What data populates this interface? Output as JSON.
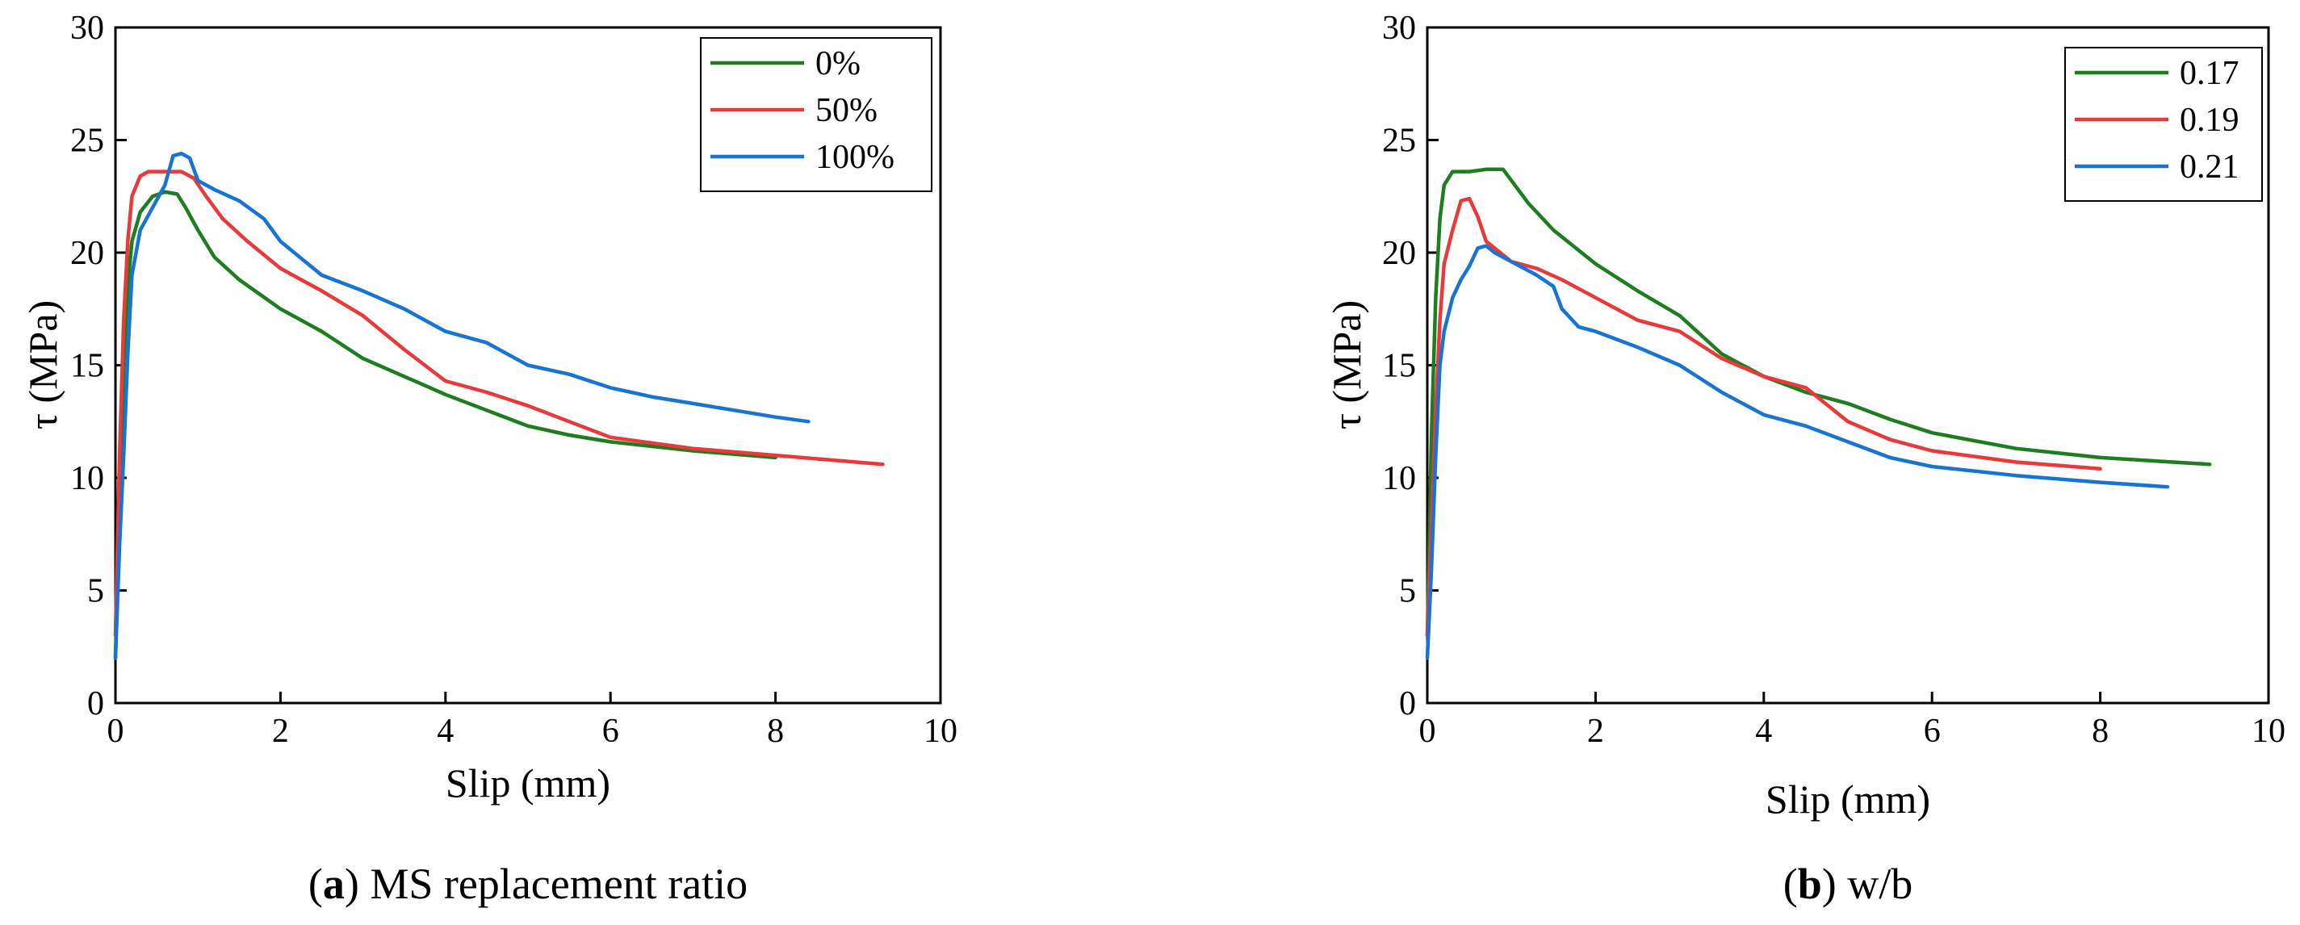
{
  "chart_data": [
    {
      "type": "line",
      "panel_label": "a",
      "caption": "MS replacement ratio",
      "xlabel": "Slip (mm)",
      "ylabel": "τ (MPa)",
      "xlim": [
        0,
        10
      ],
      "ylim": [
        0,
        30
      ],
      "xticks": [
        0,
        2,
        4,
        6,
        8,
        10
      ],
      "yticks": [
        0,
        5,
        10,
        15,
        20,
        25,
        30
      ],
      "xtick_labels": [
        "0",
        "2",
        "4",
        "6",
        "8",
        "10"
      ],
      "ytick_labels": [
        "0",
        "5",
        "10",
        "15",
        "20",
        "25",
        "30"
      ],
      "legend_position": "top-right",
      "series": [
        {
          "name": "0%",
          "color": "#1e7d1e",
          "x": [
            0,
            0.05,
            0.1,
            0.15,
            0.2,
            0.3,
            0.45,
            0.6,
            0.75,
            0.85,
            1.0,
            1.2,
            1.5,
            2.0,
            2.5,
            3.0,
            3.5,
            4.0,
            4.5,
            5.0,
            5.5,
            6.0,
            7.0,
            8.0
          ],
          "y": [
            2,
            9,
            15,
            18.5,
            20.5,
            21.8,
            22.5,
            22.7,
            22.6,
            22,
            21,
            19.8,
            18.8,
            17.5,
            16.5,
            15.3,
            14.5,
            13.7,
            13.0,
            12.3,
            11.9,
            11.6,
            11.2,
            10.9
          ]
        },
        {
          "name": "50%",
          "color": "#e83a3a",
          "x": [
            0,
            0.05,
            0.1,
            0.15,
            0.2,
            0.3,
            0.4,
            0.6,
            0.8,
            0.95,
            1.1,
            1.3,
            1.6,
            2.0,
            2.5,
            3.0,
            3.5,
            4.0,
            4.5,
            5.0,
            5.5,
            6.0,
            7.0,
            8.0,
            9.3
          ],
          "y": [
            3,
            11,
            17,
            20.5,
            22.5,
            23.4,
            23.6,
            23.6,
            23.6,
            23.3,
            22.5,
            21.5,
            20.5,
            19.3,
            18.3,
            17.2,
            15.7,
            14.3,
            13.8,
            13.2,
            12.5,
            11.8,
            11.3,
            11.0,
            10.6
          ]
        },
        {
          "name": "100%",
          "color": "#1874d2",
          "x": [
            0,
            0.05,
            0.1,
            0.15,
            0.2,
            0.3,
            0.45,
            0.6,
            0.7,
            0.8,
            0.9,
            1.0,
            1.2,
            1.5,
            1.8,
            2.0,
            2.5,
            3.0,
            3.5,
            4.0,
            4.5,
            5.0,
            5.5,
            6.0,
            6.5,
            7.0,
            7.5,
            8.0,
            8.4
          ],
          "y": [
            2,
            7,
            11,
            15.5,
            19,
            21,
            22,
            23,
            24.3,
            24.4,
            24.2,
            23.2,
            22.8,
            22.3,
            21.5,
            20.5,
            19,
            18.3,
            17.5,
            16.5,
            16,
            15,
            14.6,
            14,
            13.6,
            13.3,
            13.0,
            12.7,
            12.5
          ]
        }
      ]
    },
    {
      "type": "line",
      "panel_label": "b",
      "caption": "w/b",
      "xlabel": "Slip (mm)",
      "ylabel": "τ (MPa)",
      "xlim": [
        0,
        10
      ],
      "ylim": [
        0,
        30
      ],
      "xticks": [
        0,
        2,
        4,
        6,
        8,
        10
      ],
      "yticks": [
        0,
        5,
        10,
        15,
        20,
        25,
        30
      ],
      "xtick_labels": [
        "0",
        "2",
        "4",
        "6",
        "8",
        "10"
      ],
      "ytick_labels": [
        "0",
        "5",
        "10",
        "15",
        "20",
        "25",
        "30"
      ],
      "legend_position": "top-right",
      "series": [
        {
          "name": "0.17",
          "color": "#1e7d1e",
          "x": [
            0,
            0.05,
            0.1,
            0.15,
            0.2,
            0.3,
            0.5,
            0.7,
            0.9,
            1.0,
            1.2,
            1.5,
            2.0,
            2.5,
            3.0,
            3.5,
            4.0,
            4.5,
            5.0,
            5.5,
            6.0,
            7.0,
            8.0,
            9.3
          ],
          "y": [
            3,
            12,
            18,
            21.5,
            23,
            23.6,
            23.6,
            23.7,
            23.7,
            23.2,
            22.2,
            21,
            19.5,
            18.3,
            17.2,
            15.5,
            14.5,
            13.8,
            13.3,
            12.6,
            12,
            11.3,
            10.9,
            10.6
          ]
        },
        {
          "name": "0.19",
          "color": "#e83a3a",
          "x": [
            0,
            0.05,
            0.1,
            0.15,
            0.2,
            0.3,
            0.4,
            0.5,
            0.6,
            0.7,
            0.8,
            1.0,
            1.3,
            1.6,
            2.0,
            2.5,
            3.0,
            3.5,
            4.0,
            4.5,
            5.0,
            5.5,
            6.0,
            7.0,
            8.0
          ],
          "y": [
            3,
            8,
            13,
            17,
            19.5,
            21,
            22.3,
            22.4,
            21.6,
            20.5,
            20.2,
            19.6,
            19.3,
            18.8,
            18,
            17,
            16.5,
            15.3,
            14.5,
            14,
            12.5,
            11.7,
            11.2,
            10.7,
            10.4
          ]
        },
        {
          "name": "0.21",
          "color": "#1874d2",
          "x": [
            0,
            0.05,
            0.1,
            0.15,
            0.2,
            0.3,
            0.4,
            0.5,
            0.6,
            0.7,
            0.8,
            1.0,
            1.3,
            1.5,
            1.6,
            1.8,
            2.0,
            2.5,
            3.0,
            3.5,
            4.0,
            4.5,
            5.0,
            5.5,
            6.0,
            7.0,
            8.0,
            8.8
          ],
          "y": [
            2,
            6,
            11,
            15,
            16.5,
            18,
            18.8,
            19.4,
            20.2,
            20.3,
            20,
            19.6,
            19,
            18.5,
            17.5,
            16.7,
            16.5,
            15.8,
            15,
            13.8,
            12.8,
            12.3,
            11.6,
            10.9,
            10.5,
            10.1,
            9.8,
            9.6
          ]
        }
      ]
    }
  ]
}
